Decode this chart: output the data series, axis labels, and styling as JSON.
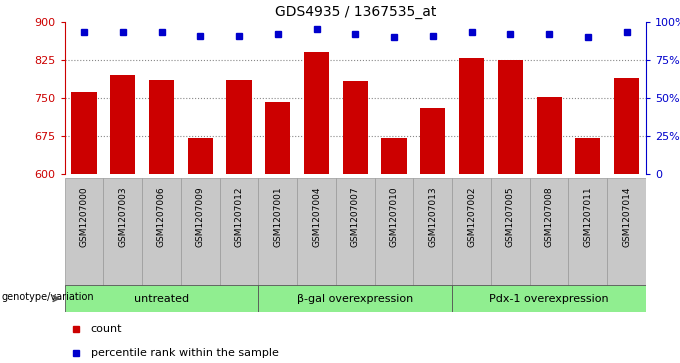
{
  "title": "GDS4935 / 1367535_at",
  "samples": [
    "GSM1207000",
    "GSM1207003",
    "GSM1207006",
    "GSM1207009",
    "GSM1207012",
    "GSM1207001",
    "GSM1207004",
    "GSM1207007",
    "GSM1207010",
    "GSM1207013",
    "GSM1207002",
    "GSM1207005",
    "GSM1207008",
    "GSM1207011",
    "GSM1207014"
  ],
  "counts": [
    762,
    795,
    785,
    672,
    785,
    743,
    840,
    783,
    672,
    730,
    828,
    825,
    752,
    672,
    790
  ],
  "percentile_ranks": [
    93,
    93,
    93,
    91,
    91,
    92,
    95,
    92,
    90,
    91,
    93,
    92,
    92,
    90,
    93
  ],
  "groups": [
    {
      "label": "untreated",
      "start": 0,
      "end": 5
    },
    {
      "label": "β-gal overexpression",
      "start": 5,
      "end": 10
    },
    {
      "label": "Pdx-1 overexpression",
      "start": 10,
      "end": 15
    }
  ],
  "ylim_left": [
    600,
    900
  ],
  "yticks_left": [
    600,
    675,
    750,
    825,
    900
  ],
  "ylim_right": [
    0,
    100
  ],
  "yticks_right": [
    0,
    25,
    50,
    75,
    100
  ],
  "bar_color": "#cc0000",
  "dot_color": "#0000cc",
  "bar_width": 0.65,
  "genotype_label": "genotype/variation",
  "legend_count_label": "count",
  "legend_pct_label": "percentile rank within the sample",
  "group_bg_color": "#90ee90",
  "sample_bg_color": "#c8c8c8",
  "plot_bg": "#ffffff",
  "dotted_line_color": "#888888",
  "right_axis_color": "#0000cc",
  "left_axis_color": "#cc0000",
  "gridline_ticks": [
    675,
    750,
    825
  ]
}
